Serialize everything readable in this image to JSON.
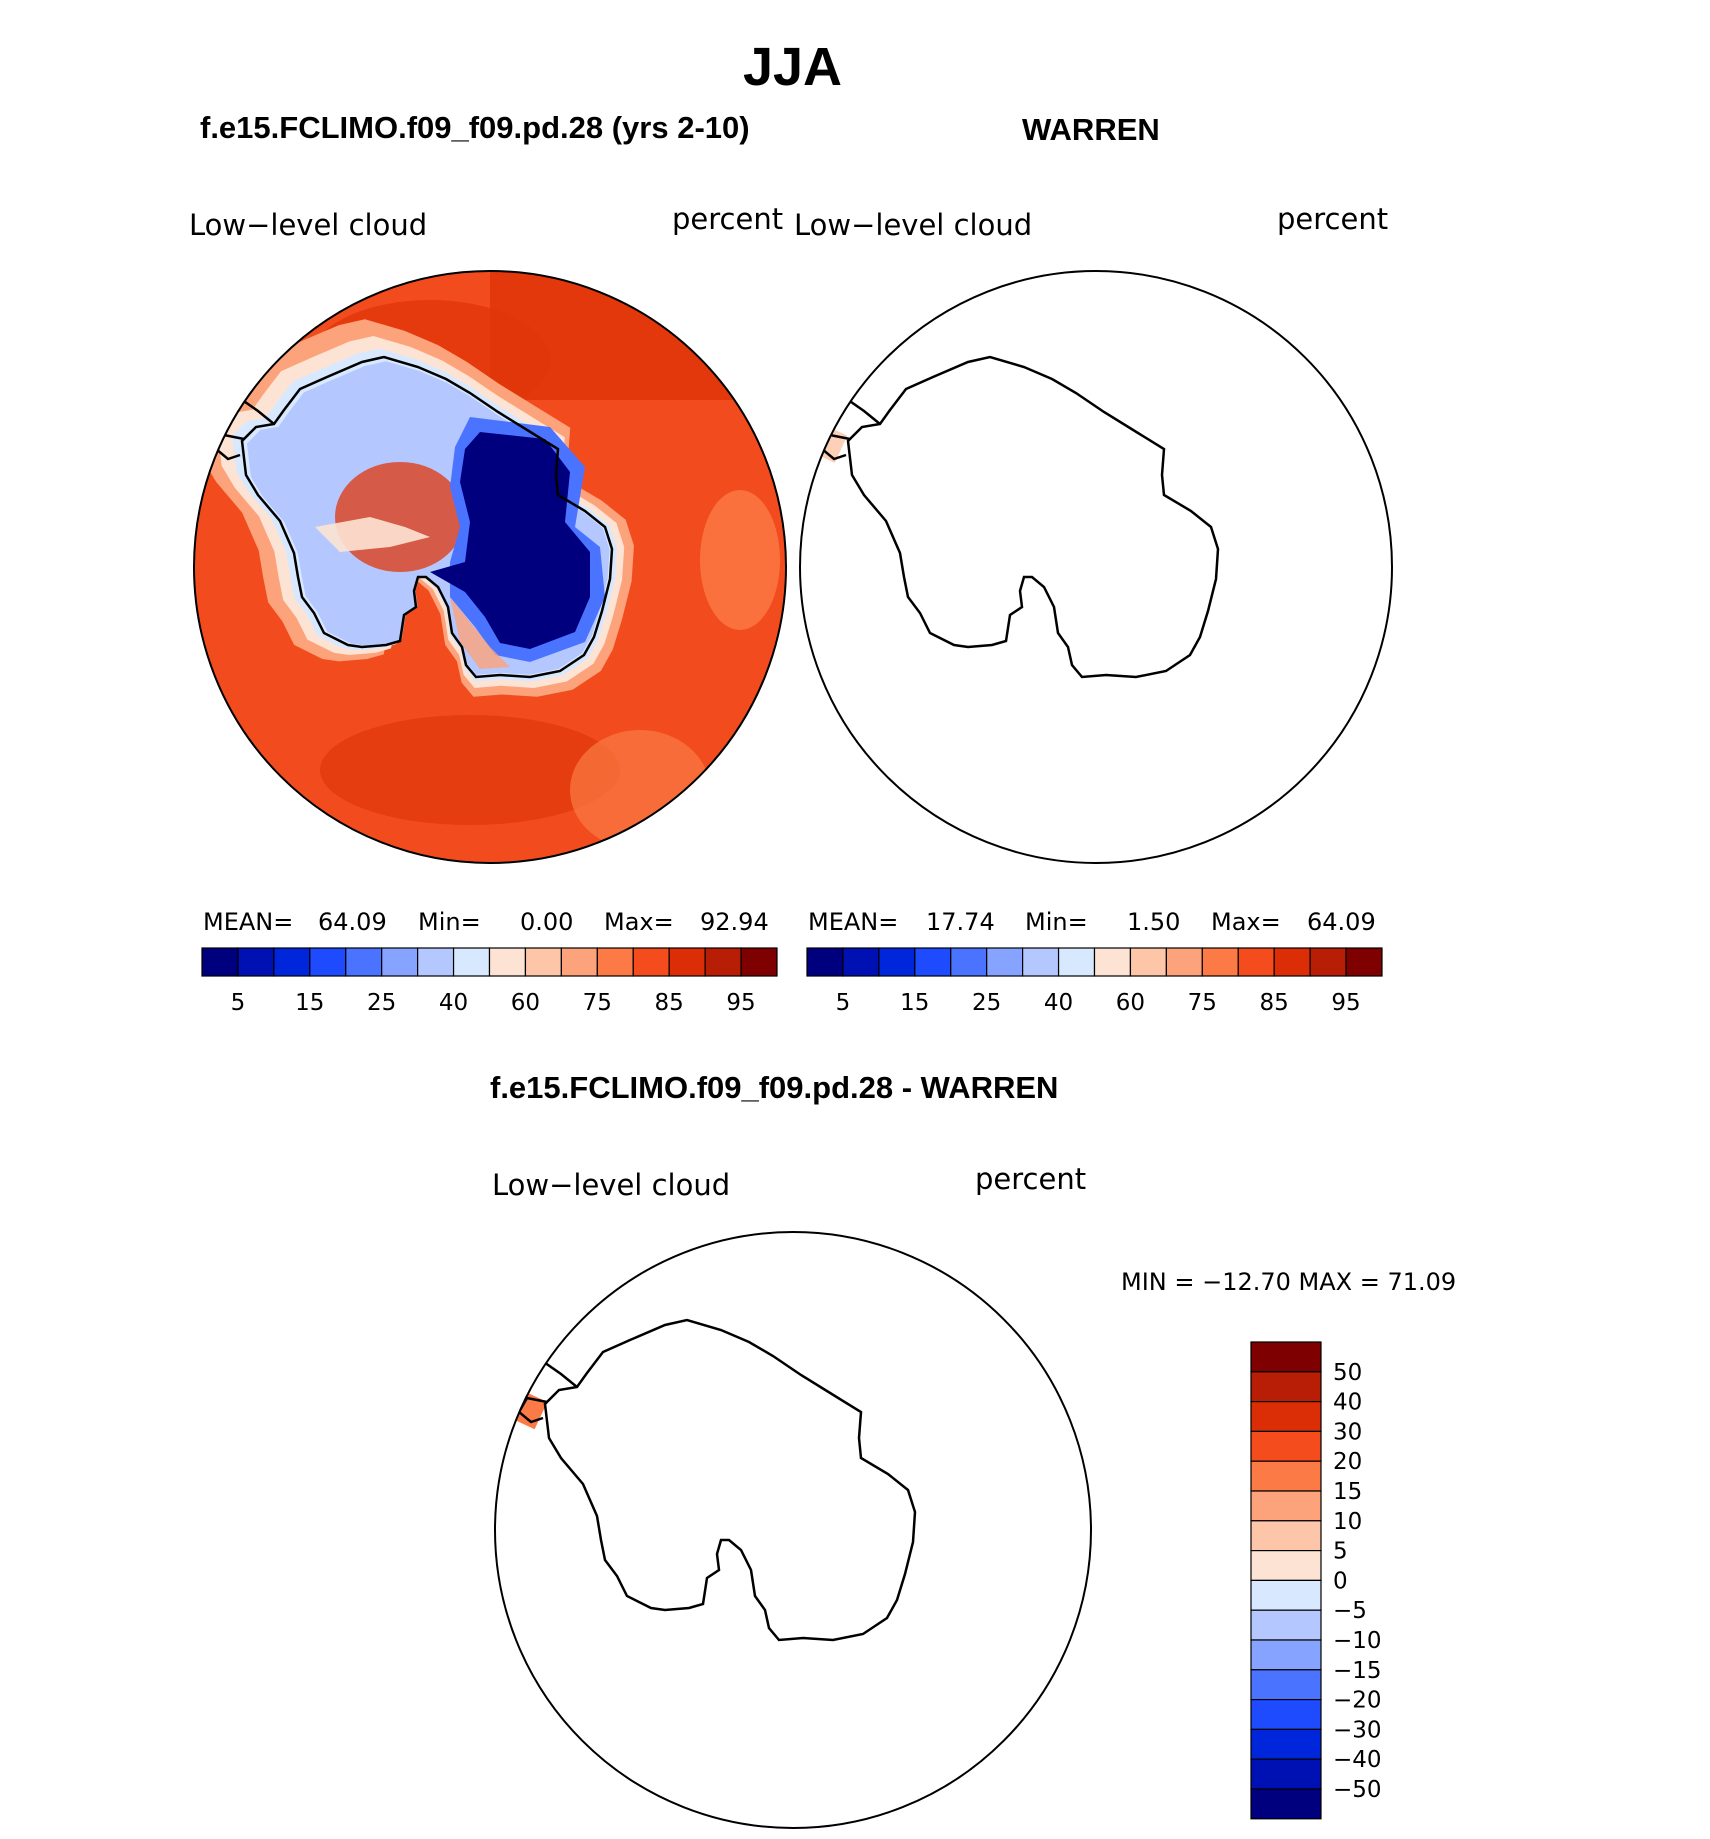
{
  "figure": {
    "season_title": "JJA",
    "colors": {
      "model_field_base": "#f24c1e",
      "model_field_dark": "#e0360a",
      "ice_blue": "#001a8f",
      "coast_line": "#000000",
      "warren_patch": "#fdd0b8",
      "diff_patch": "#fb7a45"
    }
  },
  "panels": {
    "model": {
      "case_title": "f.e15.FCLIMO.f09_f09.pd.28 (yrs 2-10)",
      "left_label": "Low−level cloud",
      "right_label": "percent",
      "mean_label": "MEAN=",
      "mean_value": "64.09",
      "min_label": "Min=",
      "min_value": "0.00",
      "max_label": "Max=",
      "max_value": "92.94"
    },
    "obs": {
      "case_title": "WARREN",
      "left_label": "Low−level cloud",
      "right_label": "percent",
      "mean_label": "MEAN=",
      "mean_value": "17.74",
      "min_label": "Min=",
      "min_value": "1.50",
      "max_label": "Max=",
      "max_value": "64.09"
    },
    "diff": {
      "case_title": "f.e15.FCLIMO.f09_f09.pd.28 - WARREN",
      "left_label": "Low−level cloud",
      "right_label": "percent",
      "min_max_text": "MIN = −12.70 MAX =   71.09"
    }
  },
  "colorbars": {
    "main": {
      "colors": [
        "#00007f",
        "#0011b4",
        "#0026dc",
        "#1f4bff",
        "#4a74ff",
        "#86a4ff",
        "#b4c8ff",
        "#d8e8ff",
        "#fde3d3",
        "#fdc6a8",
        "#fca37b",
        "#fb7a45",
        "#f54c1e",
        "#dc2e06",
        "#b81e05",
        "#7f0000"
      ],
      "tick_labels": [
        "5",
        "15",
        "25",
        "40",
        "60",
        "75",
        "85",
        "95"
      ]
    },
    "diff": {
      "colors": [
        "#7f0000",
        "#b81e05",
        "#dc2e06",
        "#f54c1e",
        "#fb7a45",
        "#fca37b",
        "#fdc6a8",
        "#fde3d3",
        "#d8e8ff",
        "#b4c8ff",
        "#86a4ff",
        "#4a74ff",
        "#1f4bff",
        "#0026dc",
        "#0011b4",
        "#00007f"
      ],
      "tick_labels": [
        "50",
        "40",
        "30",
        "20",
        "15",
        "10",
        "5",
        "0",
        "−5",
        "−10",
        "−15",
        "−20",
        "−30",
        "−40",
        "−50"
      ]
    }
  }
}
